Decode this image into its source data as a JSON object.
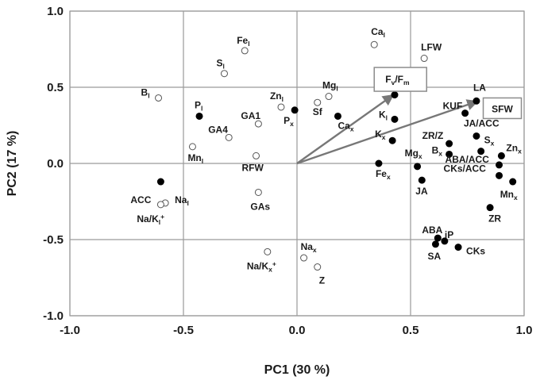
{
  "chart_data": {
    "type": "scatter",
    "xlabel": "PC1 (30 %)",
    "ylabel": "PC2 (17 %)",
    "xlim": [
      -1.0,
      1.0
    ],
    "ylim": [
      -1.0,
      1.0
    ],
    "x_ticks": [
      "-1.0",
      "-0.5",
      "0.0",
      "0.5",
      "1.0"
    ],
    "y_ticks": [
      "1.0",
      "0.5",
      "0.0",
      "-0.5",
      "-1.0"
    ],
    "grid": true,
    "series": [
      {
        "marker": "open",
        "points": [
          {
            "label": "Cal",
            "x": 0.34,
            "y": 0.78
          },
          {
            "label": "LFW",
            "x": 0.56,
            "y": 0.69
          },
          {
            "label": "Fel",
            "x": -0.23,
            "y": 0.74
          },
          {
            "label": "Sl",
            "x": -0.32,
            "y": 0.59
          },
          {
            "label": "Bl",
            "x": -0.61,
            "y": 0.43
          },
          {
            "label": "Mgl",
            "x": 0.14,
            "y": 0.44
          },
          {
            "label": "Sf",
            "x": 0.09,
            "y": 0.4
          },
          {
            "label": "Znl",
            "x": -0.07,
            "y": 0.37
          },
          {
            "label": "GA1",
            "x": -0.17,
            "y": 0.26
          },
          {
            "label": "GA4",
            "x": -0.3,
            "y": 0.17
          },
          {
            "label": "Mnl",
            "x": -0.46,
            "y": 0.11
          },
          {
            "label": "RFW",
            "x": -0.18,
            "y": 0.05
          },
          {
            "label": "GAs",
            "x": -0.17,
            "y": -0.19
          },
          {
            "label": "Nal",
            "x": -0.58,
            "y": -0.26
          },
          {
            "label": "Na/Kl+",
            "x": -0.6,
            "y": -0.27
          },
          {
            "label": "Nax",
            "x": 0.03,
            "y": -0.62
          },
          {
            "label": "Z",
            "x": 0.09,
            "y": -0.68
          },
          {
            "label": "Na/Kx+",
            "x": -0.13,
            "y": -0.58
          }
        ]
      },
      {
        "marker": "filled",
        "points": [
          {
            "label": "Pl",
            "x": -0.43,
            "y": 0.31
          },
          {
            "label": "Px",
            "x": -0.01,
            "y": 0.35
          },
          {
            "label": "Cax",
            "x": 0.18,
            "y": 0.31
          },
          {
            "label": "Fv/Fm",
            "x": 0.43,
            "y": 0.45
          },
          {
            "label": "Kl",
            "x": 0.43,
            "y": 0.29
          },
          {
            "label": "Kx",
            "x": 0.42,
            "y": 0.15
          },
          {
            "label": "Fex",
            "x": 0.36,
            "y": 0.0
          },
          {
            "label": "LA",
            "x": 0.79,
            "y": 0.41
          },
          {
            "label": "KUF",
            "x": 0.74,
            "y": 0.33
          },
          {
            "label": "ZR/Z",
            "x": 0.67,
            "y": 0.13
          },
          {
            "label": "JA/ACC",
            "x": 0.79,
            "y": 0.18
          },
          {
            "label": "Sx",
            "x": 0.81,
            "y": 0.08
          },
          {
            "label": "Znx",
            "x": 0.9,
            "y": 0.05
          },
          {
            "label": "Bx",
            "x": 0.67,
            "y": 0.06
          },
          {
            "label": "Mgx",
            "x": 0.53,
            "y": -0.02
          },
          {
            "label": "JA",
            "x": 0.55,
            "y": -0.11
          },
          {
            "label": "ABA/ACC",
            "x": 0.89,
            "y": -0.01
          },
          {
            "label": "CKs/ACC",
            "x": 0.89,
            "y": -0.08
          },
          {
            "label": "Mnx",
            "x": 0.95,
            "y": -0.12
          },
          {
            "label": "ZR",
            "x": 0.85,
            "y": -0.29
          },
          {
            "label": "ACC",
            "x": -0.6,
            "y": -0.12
          },
          {
            "label": "ABA",
            "x": 0.62,
            "y": -0.49
          },
          {
            "label": "iP",
            "x": 0.65,
            "y": -0.51
          },
          {
            "label": "SA",
            "x": 0.61,
            "y": -0.53
          },
          {
            "label": "CKs",
            "x": 0.71,
            "y": -0.55
          }
        ]
      }
    ],
    "vectors": [
      {
        "label": "Fv/Fm",
        "x": 0.43,
        "y": 0.45
      },
      {
        "label": "SFW",
        "x": 0.8,
        "y": 0.41
      }
    ],
    "boxed_labels": [
      "Fv/Fm",
      "SFW"
    ],
    "colors": {
      "filled": "#000000",
      "open_stroke": "#555555",
      "vector": "#777777",
      "grid": "#9a9a9a",
      "box": "#8c8c8c"
    }
  }
}
